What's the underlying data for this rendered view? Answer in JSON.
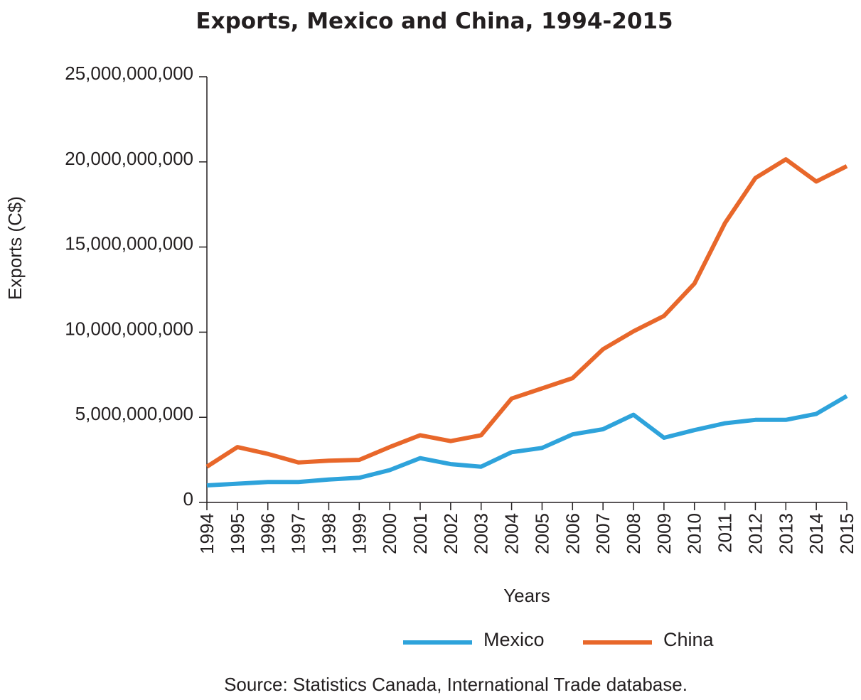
{
  "colors": {
    "mexico": "#2ea3db",
    "china": "#e8672a",
    "text": "#231f20"
  },
  "chart_data": {
    "type": "line",
    "title": "Exports, Mexico and China, 1994-2015",
    "xlabel": "Years",
    "ylabel": "Exports (C$)",
    "source": "Source: Statistics Canada, International Trade database.",
    "x": [
      "1994",
      "1995",
      "1996",
      "1997",
      "1998",
      "1999",
      "2000",
      "2001",
      "2002",
      "2003",
      "2004",
      "2005",
      "2006",
      "2007",
      "2008",
      "2009",
      "2010",
      "2011",
      "2012",
      "2013",
      "2014",
      "2015"
    ],
    "ylim": [
      0,
      25000000000
    ],
    "yticks": [
      0,
      5000000000,
      10000000000,
      15000000000,
      20000000000,
      25000000000
    ],
    "ytick_labels": [
      "0",
      "5,000,000,000",
      "10,000,000,000",
      "15,000,000,000",
      "20,000,000,000",
      "25,000,000,000"
    ],
    "grid": false,
    "legend_position": "bottom",
    "series": [
      {
        "name": "Mexico",
        "color": "#2ea3db",
        "values": [
          1000000000,
          1100000000,
          1200000000,
          1200000000,
          1350000000,
          1450000000,
          1900000000,
          2600000000,
          2250000000,
          2100000000,
          2950000000,
          3200000000,
          4000000000,
          4300000000,
          5150000000,
          3800000000,
          4250000000,
          4650000000,
          4850000000,
          4850000000,
          5200000000,
          6250000000
        ]
      },
      {
        "name": "China",
        "color": "#e8672a",
        "values": [
          2100000000,
          3250000000,
          2850000000,
          2350000000,
          2450000000,
          2500000000,
          3250000000,
          3950000000,
          3600000000,
          3950000000,
          6100000000,
          6700000000,
          7300000000,
          9000000000,
          10050000000,
          10950000000,
          12850000000,
          16400000000,
          19050000000,
          20150000000,
          18850000000,
          19750000000
        ]
      }
    ]
  }
}
